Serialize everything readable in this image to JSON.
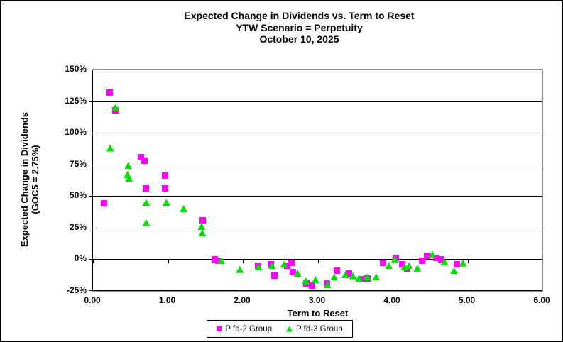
{
  "title": {
    "line1": "Expected Change in Dividends vs. Term to Reset",
    "line2": "YTW Scenario = Perpetuity",
    "line3": "October 10, 2025"
  },
  "y_axis": {
    "title_line1": "Expected Change in Dividends",
    "title_line2": "(GOC5 = 2.75%)"
  },
  "x_axis": {
    "title": "Term to Reset"
  },
  "legend": {
    "items": [
      {
        "label": "P fd-2 Group",
        "marker": "square",
        "color": "#FF00FF"
      },
      {
        "label": "P fd-3 Group",
        "marker": "triangle",
        "color": "#00E000"
      }
    ]
  },
  "chart_data": {
    "type": "scatter",
    "title": "Expected Change in Dividends vs. Term to Reset",
    "subtitle": "YTW Scenario = Perpetuity",
    "date": "October 10, 2025",
    "xlabel": "Term to Reset",
    "ylabel": "Expected Change in Dividends (GOC5 = 2.75%)",
    "xlim": [
      0,
      6
    ],
    "ylim": [
      -25,
      150
    ],
    "y_unit": "percent",
    "grid": "horizontal",
    "legend_position": "bottom",
    "x_ticks": {
      "values": [
        0,
        1,
        2,
        3,
        4,
        5,
        6
      ],
      "labels": [
        "0.00",
        "1.00",
        "2.00",
        "3.00",
        "4.00",
        "5.00",
        "6.00"
      ]
    },
    "y_ticks": {
      "values": [
        150,
        125,
        100,
        75,
        50,
        25,
        0,
        -25
      ],
      "labels": [
        "150%",
        "125%",
        "100%",
        "75%",
        "50%",
        "25%",
        "0%",
        "-25%"
      ]
    },
    "series": [
      {
        "name": "P fd-2 Group",
        "marker": "square",
        "color": "#FF00FF",
        "points": [
          [
            0.15,
            44
          ],
          [
            0.22,
            132
          ],
          [
            0.3,
            118
          ],
          [
            0.64,
            81
          ],
          [
            0.69,
            78
          ],
          [
            0.71,
            56
          ],
          [
            0.96,
            66
          ],
          [
            0.96,
            56
          ],
          [
            1.46,
            31
          ],
          [
            1.63,
            0
          ],
          [
            1.67,
            -1
          ],
          [
            2.2,
            -5
          ],
          [
            2.37,
            -4
          ],
          [
            2.42,
            -13
          ],
          [
            2.59,
            -5
          ],
          [
            2.65,
            -3
          ],
          [
            2.67,
            -10
          ],
          [
            2.85,
            -19
          ],
          [
            2.92,
            -21
          ],
          [
            3.12,
            -19
          ],
          [
            3.26,
            -9
          ],
          [
            3.42,
            -11
          ],
          [
            3.61,
            -16
          ],
          [
            3.66,
            -15
          ],
          [
            3.87,
            -3
          ],
          [
            4.04,
            1
          ],
          [
            4.13,
            -4
          ],
          [
            4.19,
            -8
          ],
          [
            4.39,
            -1
          ],
          [
            4.46,
            3
          ],
          [
            4.58,
            1
          ],
          [
            4.65,
            0
          ],
          [
            4.86,
            -4
          ]
        ]
      },
      {
        "name": "P fd-3 Group",
        "marker": "triangle",
        "color": "#00E000",
        "points": [
          [
            0.23,
            88
          ],
          [
            0.3,
            120
          ],
          [
            0.46,
            67
          ],
          [
            0.47,
            74
          ],
          [
            0.48,
            64
          ],
          [
            0.71,
            45
          ],
          [
            0.71,
            29
          ],
          [
            0.98,
            45
          ],
          [
            1.21,
            40
          ],
          [
            1.45,
            26
          ],
          [
            1.46,
            21
          ],
          [
            1.71,
            -1
          ],
          [
            1.96,
            -8
          ],
          [
            2.21,
            -6
          ],
          [
            2.39,
            -5
          ],
          [
            2.55,
            -4
          ],
          [
            2.73,
            -11
          ],
          [
            2.84,
            -17
          ],
          [
            2.97,
            -16
          ],
          [
            3.13,
            -20
          ],
          [
            3.22,
            -14
          ],
          [
            3.37,
            -12
          ],
          [
            3.47,
            -13
          ],
          [
            3.55,
            -15
          ],
          [
            3.66,
            -14
          ],
          [
            3.78,
            -14
          ],
          [
            3.95,
            -5
          ],
          [
            4.03,
            0
          ],
          [
            4.16,
            -6
          ],
          [
            4.22,
            -5
          ],
          [
            4.33,
            -7
          ],
          [
            4.53,
            4
          ],
          [
            4.69,
            -2
          ],
          [
            4.82,
            -9
          ],
          [
            4.94,
            -3
          ]
        ]
      }
    ]
  }
}
